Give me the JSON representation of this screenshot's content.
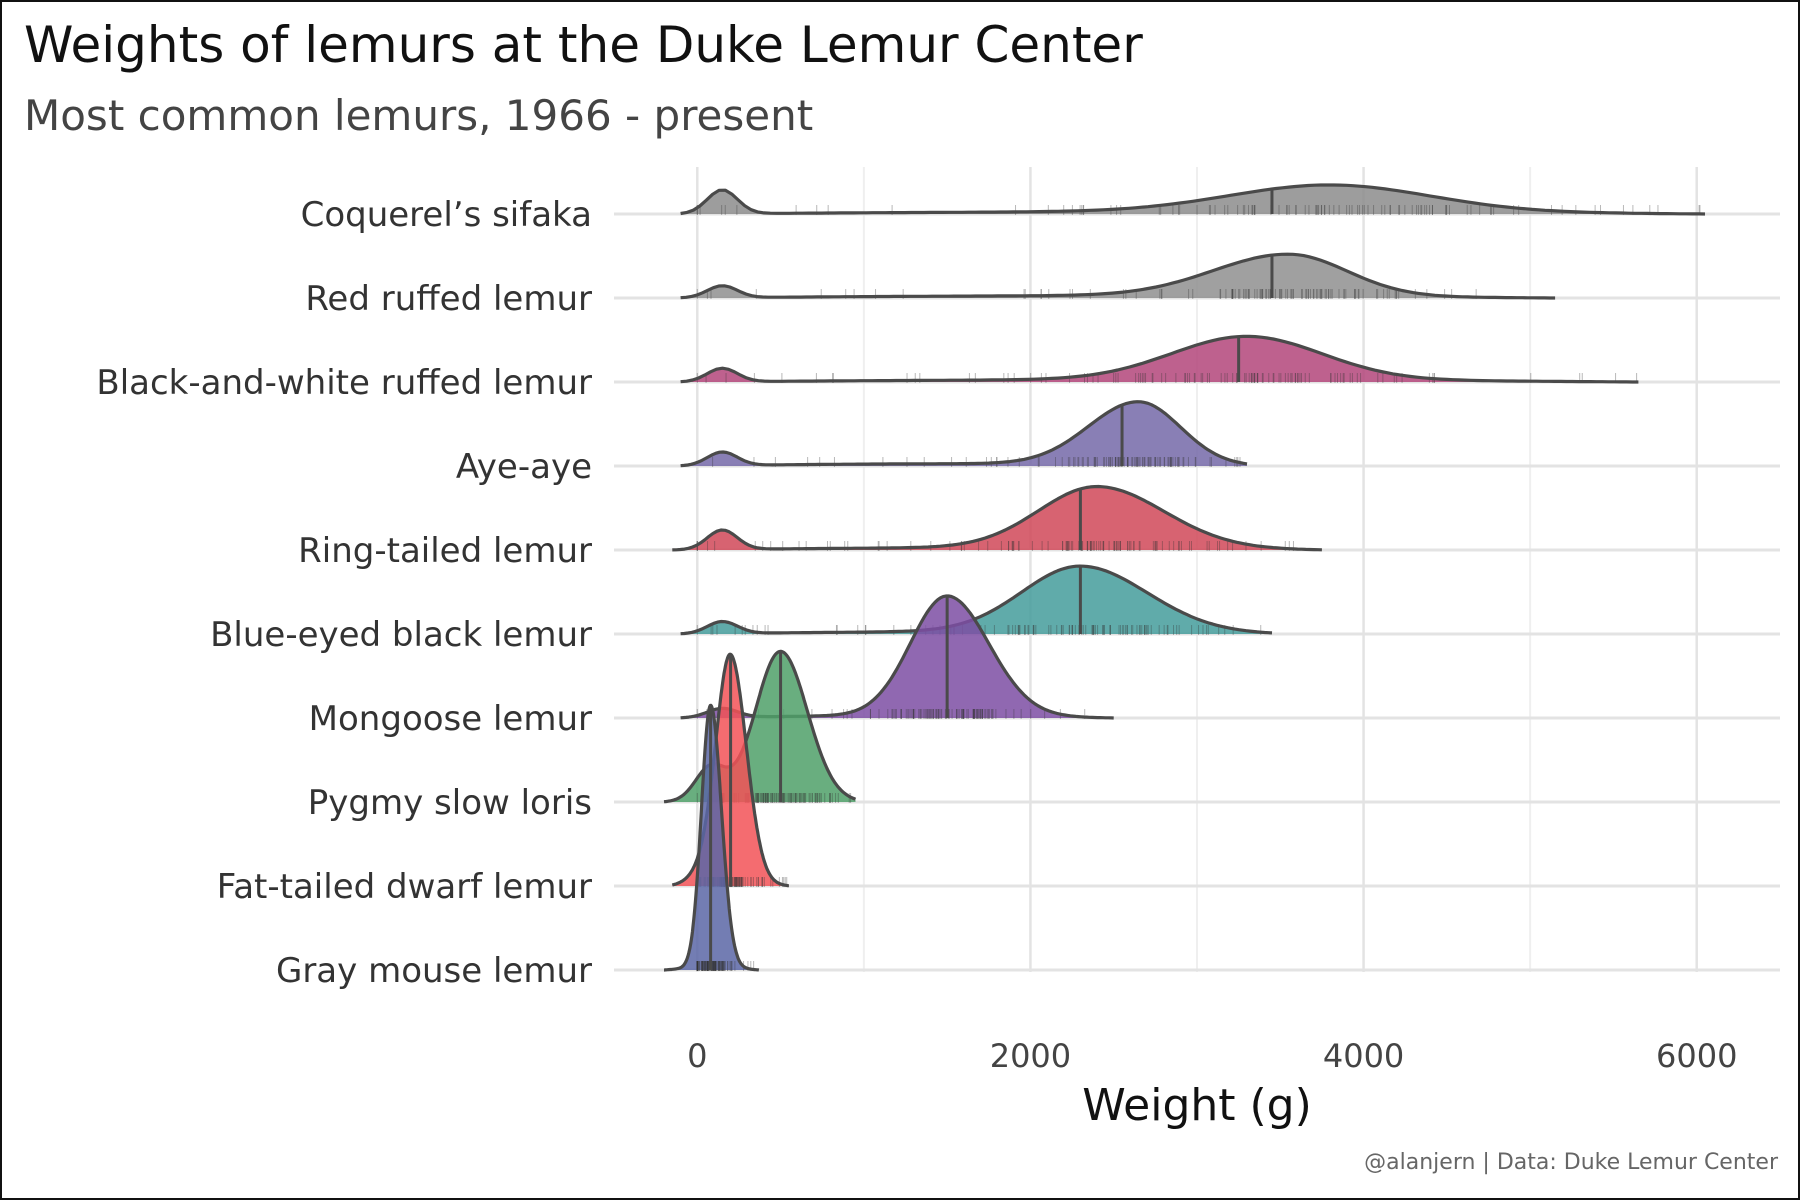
{
  "chart_data": {
    "type": "ridgeline",
    "title": "Weights of lemurs at the Duke Lemur Center",
    "subtitle": "Most common lemurs, 1966 - present",
    "xlabel": "Weight (g)",
    "caption": "@alanjern | Data: Duke Lemur Center",
    "xlim": [
      -500,
      6500
    ],
    "x_ticks": [
      0,
      2000,
      4000,
      6000
    ],
    "x_tick_labels": [
      "0",
      "2000",
      "4000",
      "6000"
    ],
    "grid": true,
    "series": [
      {
        "name": "Coquerel's sifaka",
        "label": "Coquerel’s sifaka",
        "color": "#8c8c8c",
        "median": 3450,
        "min": -100,
        "max": 6050,
        "peak": 3800,
        "spread_low": 600,
        "spread_high": 600,
        "peak_height": 0.18,
        "young_peak": 150,
        "young_height": 0.16
      },
      {
        "name": "Red ruffed lemur",
        "label": "Red ruffed lemur",
        "color": "#8f8f8f",
        "median": 3450,
        "min": -100,
        "max": 5150,
        "peak": 3550,
        "spread_low": 450,
        "spread_high": 350,
        "peak_height": 0.28,
        "young_peak": 150,
        "young_height": 0.08
      },
      {
        "name": "Black-and-white ruffed lemur",
        "label": "Black-and-white ruffed lemur",
        "color": "#b3457a",
        "median": 3250,
        "min": -100,
        "max": 5650,
        "peak": 3300,
        "spread_low": 450,
        "spread_high": 450,
        "peak_height": 0.29,
        "young_peak": 150,
        "young_height": 0.09
      },
      {
        "name": "Aye-aye",
        "label": "Aye-aye",
        "color": "#7469a8",
        "median": 2550,
        "min": -100,
        "max": 3300,
        "peak": 2650,
        "spread_low": 300,
        "spread_high": 250,
        "peak_height": 0.42,
        "young_peak": 150,
        "young_height": 0.09
      },
      {
        "name": "Ring-tailed lemur",
        "label": "Ring-tailed lemur",
        "color": "#d04858",
        "median": 2300,
        "min": -150,
        "max": 3750,
        "peak": 2400,
        "spread_low": 350,
        "spread_high": 400,
        "peak_height": 0.41,
        "young_peak": 150,
        "young_height": 0.13
      },
      {
        "name": "Blue-eyed black lemur",
        "label": "Blue-eyed black lemur",
        "color": "#449c9b",
        "median": 2300,
        "min": -100,
        "max": 3450,
        "peak": 2300,
        "spread_low": 350,
        "spread_high": 400,
        "peak_height": 0.44,
        "young_peak": 150,
        "young_height": 0.08
      },
      {
        "name": "Mongoose lemur",
        "label": "Mongoose lemur",
        "color": "#7c4ea3",
        "median": 1500,
        "min": -100,
        "max": 2500,
        "peak": 1500,
        "spread_low": 220,
        "spread_high": 250,
        "peak_height": 0.8,
        "young_peak": 150,
        "young_height": 0.06
      },
      {
        "name": "Pygmy slow loris",
        "label": "Pygmy slow loris",
        "color": "#4fa069",
        "median": 500,
        "min": -200,
        "max": 950,
        "peak": 500,
        "spread_low": 150,
        "spread_high": 160,
        "peak_height": 0.99,
        "young_peak": 80,
        "young_height": 0.22
      },
      {
        "name": "Fat-tailed dwarf lemur",
        "label": "Fat-tailed dwarf lemur",
        "color": "#f25257",
        "median": 200,
        "min": -150,
        "max": 550,
        "peak": 200,
        "spread_low": 85,
        "spread_high": 95,
        "peak_height": 1.5,
        "young_peak": 60,
        "young_height": 0.1
      },
      {
        "name": "Gray mouse lemur",
        "label": "Gray mouse lemur",
        "color": "#5b66a6",
        "median": 80,
        "min": -200,
        "max": 370,
        "peak": 80,
        "spread_low": 55,
        "spread_high": 65,
        "peak_height": 1.75,
        "young_peak": 60,
        "young_height": 0.0
      }
    ]
  }
}
